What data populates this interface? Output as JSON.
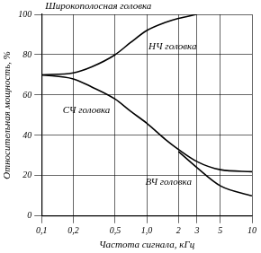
{
  "chart_data": {
    "type": "line",
    "x_label": "Частота сигнала, кГц",
    "y_label": "Относительная мощность, %",
    "annotations": [
      "Широкополосная головка"
    ],
    "log": "x",
    "grid": true,
    "xlim": [
      0.1,
      10
    ],
    "xticks": [
      {
        "value": 0.1,
        "label": "0,1"
      },
      {
        "value": 0.2,
        "label": "0,2"
      },
      {
        "value": 0.5,
        "label": "0,5"
      },
      {
        "value": 1,
        "label": "1,0"
      },
      2,
      3,
      5,
      10
    ],
    "ylim": [
      0,
      100
    ],
    "yticks": [
      0,
      20,
      40,
      60,
      80,
      100
    ],
    "series": [
      {
        "name": "НЧ головка",
        "color": "#000000",
        "x": [
          0.1,
          0.2,
          0.3,
          0.5,
          0.7,
          1,
          1.5,
          2,
          3
        ],
        "values": [
          70,
          71,
          74,
          80,
          86,
          92,
          96,
          98,
          100
        ]
      },
      {
        "name": "СЧ головка",
        "color": "#000000",
        "x": [
          0.1,
          0.2,
          0.3,
          0.5,
          0.7,
          1,
          1.5,
          2,
          3,
          5,
          10
        ],
        "values": [
          70,
          68,
          64,
          58,
          52,
          46,
          38,
          33,
          27,
          23,
          22
        ]
      },
      {
        "name": "ВЧ головка",
        "color": "#000000",
        "x": [
          2,
          3,
          5,
          10
        ],
        "values": [
          32,
          24,
          15,
          10
        ]
      }
    ]
  }
}
